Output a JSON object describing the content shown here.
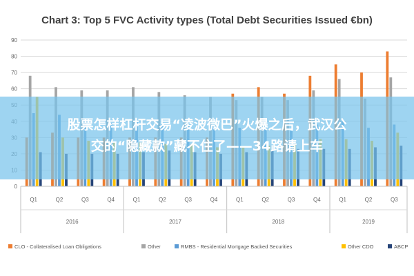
{
  "chart_data": {
    "type": "bar",
    "title": "Chart 3: Top 5 FVC Activity types (Total Debt Securities Issued €bn)",
    "xlabel": "",
    "ylabel": "",
    "ylim": [
      0,
      90
    ],
    "yticks": [
      "0",
      "10",
      "20",
      "30",
      "40",
      "50",
      "60",
      "70",
      "80",
      "90"
    ],
    "grid": true,
    "legend_position": "bottom",
    "categories": [
      "Q1",
      "Q2",
      "Q3",
      "Q4",
      "Q1",
      "Q2",
      "Q3",
      "Q4",
      "Q1",
      "Q2",
      "Q3",
      "Q4",
      "Q1",
      "Q2",
      "Q3"
    ],
    "groups": [
      {
        "label": "2016",
        "count": 4
      },
      {
        "label": "2017",
        "count": 4
      },
      {
        "label": "2018",
        "count": 4
      },
      {
        "label": "2019",
        "count": 3
      }
    ],
    "series": [
      {
        "name": "CLO - Collateralised Loan Obligations",
        "color": "#ed7d31",
        "values": [
          30,
          33,
          30,
          30,
          30,
          30,
          30,
          30,
          57,
          61,
          57,
          68,
          75,
          70,
          83
        ]
      },
      {
        "name": "Other",
        "color": "#a5a5a5",
        "values": [
          68,
          61,
          59,
          59,
          61,
          58,
          56,
          55,
          53,
          55,
          53,
          59,
          66,
          54,
          67
        ]
      },
      {
        "name": "RMBS - Residential Mortgage Backed Securities",
        "color": "#5b9bd5",
        "values": [
          45,
          44,
          40,
          39,
          40,
          38,
          38,
          37,
          36,
          35,
          34,
          38,
          40,
          36,
          38
        ]
      },
      {
        "name": "Other CDO",
        "color": "#ffc000",
        "values": [
          55,
          30,
          28,
          27,
          27,
          26,
          26,
          24,
          24,
          25,
          26,
          29,
          29,
          28,
          33
        ]
      },
      {
        "name": "ABCP",
        "color": "#264478",
        "values": [
          21,
          20,
          20,
          20,
          21,
          22,
          21,
          20,
          21,
          22,
          23,
          23,
          23,
          24,
          25
        ]
      }
    ]
  },
  "overlay": {
    "line1": "股票怎样杠杆交易“凌波微巴”火爆之后，武汉公",
    "line2": "交的“隐藏款”藏不住了——34路请上车"
  }
}
